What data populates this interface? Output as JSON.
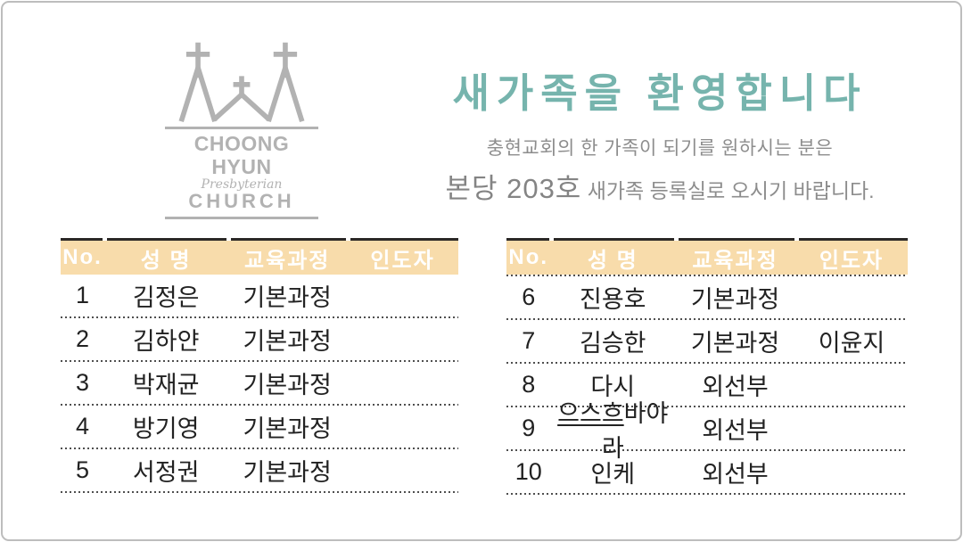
{
  "colors": {
    "accent_teal": "#76b4ad",
    "table_header_bg": "#f8dcab",
    "table_header_text": "#ffffff",
    "logo_gray": "#b2b2b2",
    "frame_border": "#bdbdbd"
  },
  "logo": {
    "icon": "three-crosses-church-icon",
    "line1": "CHOONG HYUN",
    "line2": "Presbyterian",
    "line3": "CHURCH"
  },
  "header": {
    "title": "새가족을 환영합니다",
    "subtitle_line1": "충현교회의 한 가족이 되기를 원하시는 분은",
    "subtitle_line2_em": "본당 203호",
    "subtitle_line2_rest": " 새가족 등록실로 오시기 바랍니다."
  },
  "tables": {
    "columns": [
      "No.",
      "성 명",
      "교육과정",
      "인도자"
    ],
    "left": {
      "header_divider_dotted": false,
      "rows": [
        {
          "no": "1",
          "name": "김정은",
          "course": "기본과정",
          "leader": ""
        },
        {
          "no": "2",
          "name": "김하얀",
          "course": "기본과정",
          "leader": ""
        },
        {
          "no": "3",
          "name": "박재균",
          "course": "기본과정",
          "leader": ""
        },
        {
          "no": "4",
          "name": "방기영",
          "course": "기본과정",
          "leader": ""
        },
        {
          "no": "5",
          "name": "서정권",
          "course": "기본과정",
          "leader": ""
        }
      ]
    },
    "right": {
      "header_divider_dotted": true,
      "rows": [
        {
          "no": "6",
          "name": "진용호",
          "course": "기본과정",
          "leader": ""
        },
        {
          "no": "7",
          "name": "김승한",
          "course": "기본과정",
          "leader": "이윤지"
        },
        {
          "no": "8",
          "name": "다시",
          "course": "외선부",
          "leader": ""
        },
        {
          "no": "9",
          "name": "으스흐바야라",
          "underline_prefix": 3,
          "course": "외선부",
          "leader": ""
        },
        {
          "no": "10",
          "name": "인케",
          "course": "외선부",
          "leader": ""
        }
      ]
    }
  }
}
